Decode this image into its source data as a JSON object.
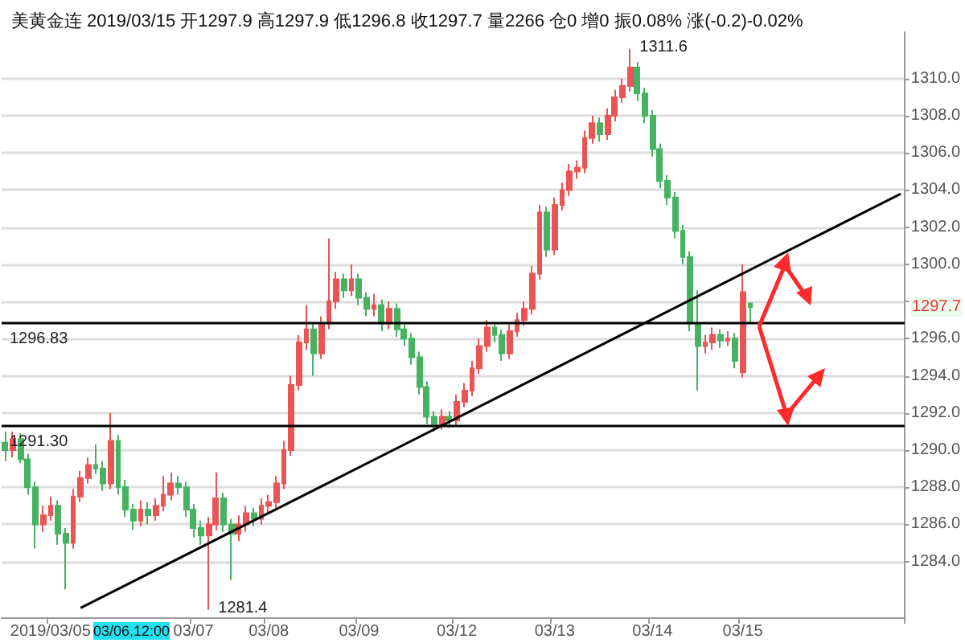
{
  "chart_data": {
    "type": "candlestick",
    "title": "美黄金连 2019/03/15 开1297.9 高1297.9 低1296.8 收1297.7 量2266 仓0 增0 振0.08% 涨(-0.2)-0.02%",
    "categories": [
      null,
      null,
      null,
      null,
      null,
      null,
      "2019/03/05",
      null,
      null,
      null,
      null,
      null,
      null,
      null,
      null,
      null,
      null,
      null,
      null,
      null,
      null,
      null,
      null,
      null,
      null,
      "03/07",
      null,
      null,
      null,
      null,
      null,
      null,
      null,
      null,
      null,
      "03/08",
      null,
      null,
      null,
      null,
      null,
      null,
      null,
      null,
      null,
      null,
      null,
      "03/09",
      null,
      null,
      null,
      null,
      null,
      null,
      null,
      null,
      null,
      null,
      null,
      null,
      "03/12",
      null,
      null,
      null,
      null,
      null,
      null,
      null,
      null,
      null,
      null,
      null,
      null,
      "03/13",
      null,
      null,
      null,
      null,
      null,
      null,
      null,
      null,
      null,
      null,
      null,
      null,
      "03/14",
      null,
      null,
      null,
      null,
      null,
      null,
      null,
      null,
      null,
      null,
      null,
      "03/15",
      null,
      null,
      null,
      null,
      null,
      null,
      null,
      null,
      null,
      null,
      null,
      null,
      null,
      null,
      null,
      null,
      null,
      null,
      null,
      null,
      null
    ],
    "ohlc": [
      [
        1290.4,
        1291.0,
        1289.4,
        1290.0
      ],
      [
        1290.0,
        1291.0,
        1289.6,
        1290.6
      ],
      [
        1290.6,
        1290.9,
        1289.3,
        1289.5
      ],
      [
        1289.5,
        1289.8,
        1287.6,
        1288.0
      ],
      [
        1288.0,
        1288.3,
        1284.7,
        1286.0
      ],
      [
        1286.0,
        1287.0,
        1285.6,
        1286.5
      ],
      [
        1286.5,
        1287.5,
        1286.2,
        1287.0
      ],
      [
        1287.0,
        1287.3,
        1284.9,
        1285.5
      ],
      [
        1285.5,
        1285.8,
        1282.5,
        1285.0
      ],
      [
        1285.0,
        1287.9,
        1284.7,
        1287.5
      ],
      [
        1287.5,
        1288.9,
        1287.2,
        1288.5
      ],
      [
        1288.5,
        1289.6,
        1288.2,
        1289.2
      ],
      [
        1289.2,
        1290.3,
        1288.7,
        1289.0
      ],
      [
        1289.0,
        1289.4,
        1287.8,
        1288.2
      ],
      [
        1288.2,
        1292.0,
        1287.9,
        1290.5
      ],
      [
        1290.5,
        1290.8,
        1287.6,
        1288.0
      ],
      [
        1288.0,
        1288.4,
        1286.4,
        1286.8
      ],
      [
        1286.8,
        1287.1,
        1285.7,
        1286.2
      ],
      [
        1286.2,
        1287.3,
        1285.9,
        1286.8
      ],
      [
        1286.8,
        1287.2,
        1286.0,
        1286.5
      ],
      [
        1286.5,
        1287.4,
        1286.2,
        1287.0
      ],
      [
        1287.0,
        1288.6,
        1286.7,
        1287.6
      ],
      [
        1287.6,
        1288.8,
        1287.3,
        1288.2
      ],
      [
        1288.2,
        1288.6,
        1287.6,
        1288.0
      ],
      [
        1288.0,
        1288.3,
        1286.4,
        1286.8
      ],
      [
        1286.8,
        1287.1,
        1285.3,
        1285.8
      ],
      [
        1285.8,
        1286.2,
        1284.9,
        1285.4
      ],
      [
        1285.4,
        1286.4,
        1281.4,
        1286.0
      ],
      [
        1286.0,
        1288.8,
        1285.7,
        1287.4
      ],
      [
        1287.4,
        1287.7,
        1285.6,
        1286.0
      ],
      [
        1286.0,
        1286.3,
        1283.0,
        1285.5
      ],
      [
        1285.5,
        1286.5,
        1285.1,
        1286.0
      ],
      [
        1286.0,
        1287.0,
        1285.6,
        1286.6
      ],
      [
        1286.6,
        1286.9,
        1285.9,
        1286.3
      ],
      [
        1286.3,
        1287.4,
        1286.0,
        1287.0
      ],
      [
        1287.0,
        1287.6,
        1286.6,
        1287.2
      ],
      [
        1287.2,
        1288.6,
        1286.9,
        1288.2
      ],
      [
        1288.2,
        1290.5,
        1287.9,
        1290.0
      ],
      [
        1290.0,
        1294.0,
        1289.7,
        1293.5
      ],
      [
        1293.5,
        1296.2,
        1293.2,
        1295.8
      ],
      [
        1295.8,
        1297.8,
        1295.4,
        1296.5
      ],
      [
        1296.5,
        1296.8,
        1294.0,
        1295.2
      ],
      [
        1295.2,
        1297.2,
        1294.9,
        1296.8
      ],
      [
        1296.8,
        1301.4,
        1296.5,
        1298.0
      ],
      [
        1298.0,
        1299.6,
        1297.6,
        1299.2
      ],
      [
        1299.2,
        1299.5,
        1298.2,
        1298.6
      ],
      [
        1298.6,
        1300.0,
        1298.3,
        1299.2
      ],
      [
        1299.2,
        1299.5,
        1297.8,
        1298.2
      ],
      [
        1298.2,
        1298.5,
        1297.2,
        1297.6
      ],
      [
        1297.6,
        1298.4,
        1297.2,
        1297.8
      ],
      [
        1297.8,
        1298.1,
        1296.4,
        1296.8
      ],
      [
        1296.8,
        1298.0,
        1296.5,
        1297.6
      ],
      [
        1297.6,
        1297.9,
        1296.1,
        1296.5
      ],
      [
        1296.5,
        1296.8,
        1295.6,
        1296.0
      ],
      [
        1296.0,
        1296.3,
        1294.6,
        1295.0
      ],
      [
        1295.0,
        1295.3,
        1293.0,
        1293.4
      ],
      [
        1293.4,
        1293.7,
        1291.4,
        1291.8
      ],
      [
        1291.8,
        1292.1,
        1291.0,
        1291.4
      ],
      [
        1291.4,
        1292.2,
        1291.1,
        1291.8
      ],
      [
        1291.8,
        1292.1,
        1291.2,
        1291.6
      ],
      [
        1291.6,
        1293.0,
        1291.3,
        1292.6
      ],
      [
        1292.6,
        1293.6,
        1292.3,
        1293.2
      ],
      [
        1293.2,
        1294.8,
        1292.9,
        1294.4
      ],
      [
        1294.4,
        1296.0,
        1294.1,
        1295.6
      ],
      [
        1295.6,
        1297.0,
        1295.3,
        1296.6
      ],
      [
        1296.6,
        1296.9,
        1295.8,
        1296.2
      ],
      [
        1296.2,
        1296.5,
        1294.8,
        1295.2
      ],
      [
        1295.2,
        1296.8,
        1294.9,
        1296.4
      ],
      [
        1296.4,
        1297.4,
        1296.1,
        1297.0
      ],
      [
        1297.0,
        1298.0,
        1296.7,
        1297.6
      ],
      [
        1297.6,
        1299.9,
        1297.3,
        1299.5
      ],
      [
        1299.5,
        1303.2,
        1299.2,
        1302.8
      ],
      [
        1302.8,
        1303.1,
        1300.4,
        1300.8
      ],
      [
        1300.8,
        1303.6,
        1300.5,
        1303.2
      ],
      [
        1303.2,
        1304.4,
        1302.9,
        1304.0
      ],
      [
        1304.0,
        1305.4,
        1303.7,
        1305.0
      ],
      [
        1305.0,
        1305.6,
        1304.6,
        1305.2
      ],
      [
        1305.2,
        1307.2,
        1304.9,
        1306.8
      ],
      [
        1306.8,
        1308.0,
        1306.5,
        1307.6
      ],
      [
        1307.6,
        1307.9,
        1306.6,
        1307.0
      ],
      [
        1307.0,
        1308.4,
        1306.7,
        1308.0
      ],
      [
        1308.0,
        1309.4,
        1307.7,
        1309.0
      ],
      [
        1309.0,
        1310.0,
        1308.7,
        1309.6
      ],
      [
        1309.6,
        1311.6,
        1309.3,
        1310.6
      ],
      [
        1310.6,
        1310.9,
        1308.8,
        1309.2
      ],
      [
        1309.2,
        1309.5,
        1307.6,
        1308.0
      ],
      [
        1308.0,
        1308.3,
        1305.8,
        1306.2
      ],
      [
        1306.2,
        1306.5,
        1304.1,
        1304.5
      ],
      [
        1304.5,
        1304.8,
        1303.2,
        1303.6
      ],
      [
        1303.6,
        1303.9,
        1301.4,
        1301.8
      ],
      [
        1301.8,
        1302.1,
        1300.0,
        1300.4
      ],
      [
        1300.4,
        1300.7,
        1296.4,
        1296.8
      ],
      [
        1296.8,
        1298.6,
        1293.2,
        1295.6
      ],
      [
        1295.6,
        1296.2,
        1295.2,
        1295.8
      ],
      [
        1295.8,
        1296.6,
        1295.4,
        1296.2
      ],
      [
        1296.2,
        1296.5,
        1295.5,
        1295.9
      ],
      [
        1295.9,
        1296.4,
        1295.6,
        1296.0
      ],
      [
        1296.0,
        1296.3,
        1294.4,
        1294.8
      ],
      [
        1294.2,
        1300.0,
        1293.9,
        1298.5
      ],
      [
        1297.9,
        1297.9,
        1296.8,
        1297.7
      ],
      null,
      null,
      null,
      null,
      null,
      null,
      null,
      null,
      null,
      null,
      null,
      null,
      null,
      null,
      null,
      null,
      null,
      null,
      null,
      null
    ],
    "series": [
      {
        "type": "line",
        "color": "#000000",
        "values": [
          null,
          null,
          null,
          null,
          null,
          null,
          null,
          null,
          null,
          null,
          1281.5,
          null,
          null,
          null,
          null,
          null,
          null,
          null,
          null,
          null,
          null,
          null,
          null,
          null,
          null,
          null,
          null,
          null,
          null,
          null,
          null,
          null,
          null,
          null,
          null,
          null,
          null,
          null,
          null,
          null,
          null,
          null,
          null,
          null,
          null,
          null,
          null,
          null,
          null,
          null,
          null,
          null,
          null,
          null,
          null,
          null,
          null,
          null,
          null,
          null,
          null,
          null,
          null,
          null,
          null,
          null,
          null,
          null,
          null,
          null,
          null,
          null,
          null,
          null,
          null,
          null,
          null,
          null,
          null,
          null,
          null,
          null,
          null,
          null,
          null,
          null,
          null,
          null,
          null,
          null,
          null,
          null,
          null,
          null,
          null,
          null,
          null,
          null,
          null,
          null,
          null,
          null,
          null,
          null,
          null,
          null,
          null,
          null,
          null,
          null,
          null,
          null,
          null,
          null,
          null,
          null,
          null,
          null,
          null,
          1303.8
        ]
      }
    ],
    "ylim": [
      1281,
      1312.5
    ],
    "yticks": [
      {
        "value": 1284,
        "label": "1284.0"
      },
      {
        "value": 1286,
        "label": "1286.0"
      },
      {
        "value": 1288,
        "label": "1288.0"
      },
      {
        "value": 1290,
        "label": "1290.0"
      },
      {
        "value": 1292,
        "label": "1292.0"
      },
      {
        "value": 1294,
        "label": "1294.0"
      },
      {
        "value": 1296,
        "label": "1296.0"
      },
      {
        "value": 1298,
        "label": null
      },
      {
        "value": 1300,
        "label": "1300.0"
      },
      {
        "value": 1302,
        "label": "1302.0"
      },
      {
        "value": 1304,
        "label": "1304.0"
      },
      {
        "value": 1306,
        "label": "1306.0"
      },
      {
        "value": 1308,
        "label": "1308.0"
      },
      {
        "value": 1310,
        "label": "1310.0"
      }
    ],
    "grid": "y",
    "ref_lines": [
      {
        "axis": "y",
        "value": 1296.83,
        "label": "1296.83",
        "color": "#000000"
      },
      {
        "axis": "y",
        "value": 1291.3,
        "label": "1291.30",
        "color": "#000000"
      }
    ],
    "annotations": [
      "1311.6",
      "1281.4",
      "1297.7",
      "03/06,12:00"
    ]
  }
}
